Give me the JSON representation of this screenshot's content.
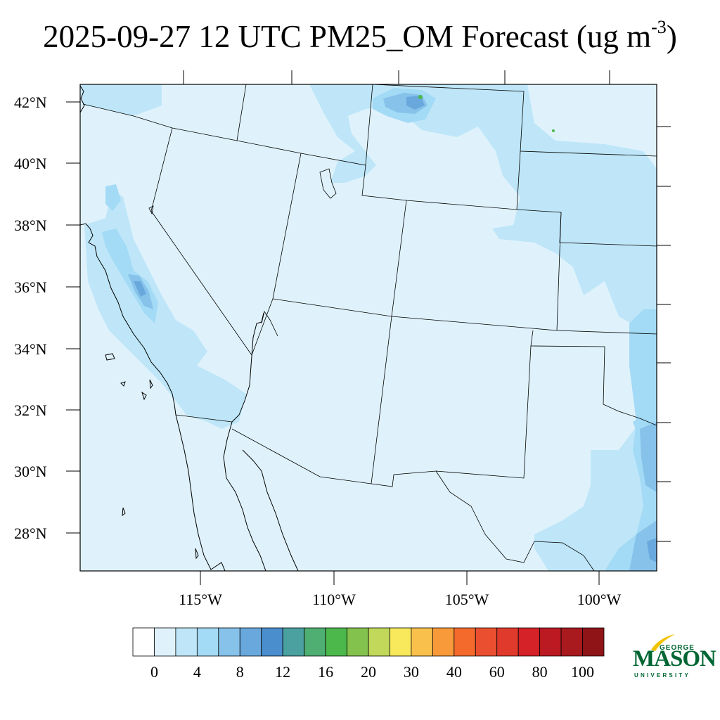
{
  "title": {
    "text": "2025-09-27 12 UTC PM25_OM Forecast (ug m",
    "superscript": "-3",
    "close": ")"
  },
  "map": {
    "lat_labels": [
      "42°N",
      "40°N",
      "38°N",
      "36°N",
      "34°N",
      "32°N",
      "30°N",
      "28°N"
    ],
    "lon_labels": [
      "115°W",
      "110°W",
      "105°W",
      "100°W"
    ],
    "base_color": "#dff2fc",
    "border_color": "#000000"
  },
  "colorbar": {
    "colors": [
      "#ffffff",
      "#dff2fc",
      "#bee6f8",
      "#a3daf5",
      "#86c2ea",
      "#69a8dd",
      "#4a8ecd",
      "#4ba0a0",
      "#4fae72",
      "#4cb84c",
      "#84c24e",
      "#c2d85a",
      "#f8e85c",
      "#f9c04c",
      "#f99a3a",
      "#f36a2c",
      "#ea5030",
      "#e03a2c",
      "#d42228",
      "#bb1a22",
      "#a81a1e",
      "#8e1418"
    ],
    "labels": [
      "0",
      "4",
      "8",
      "12",
      "16",
      "20",
      "30",
      "40",
      "60",
      "80",
      "100"
    ]
  },
  "logo": {
    "top_word": "GEORGE",
    "main_word": "MASON",
    "bottom_word": "UNIVERSITY",
    "color": "#006633",
    "accent_color": "#f2c300"
  }
}
